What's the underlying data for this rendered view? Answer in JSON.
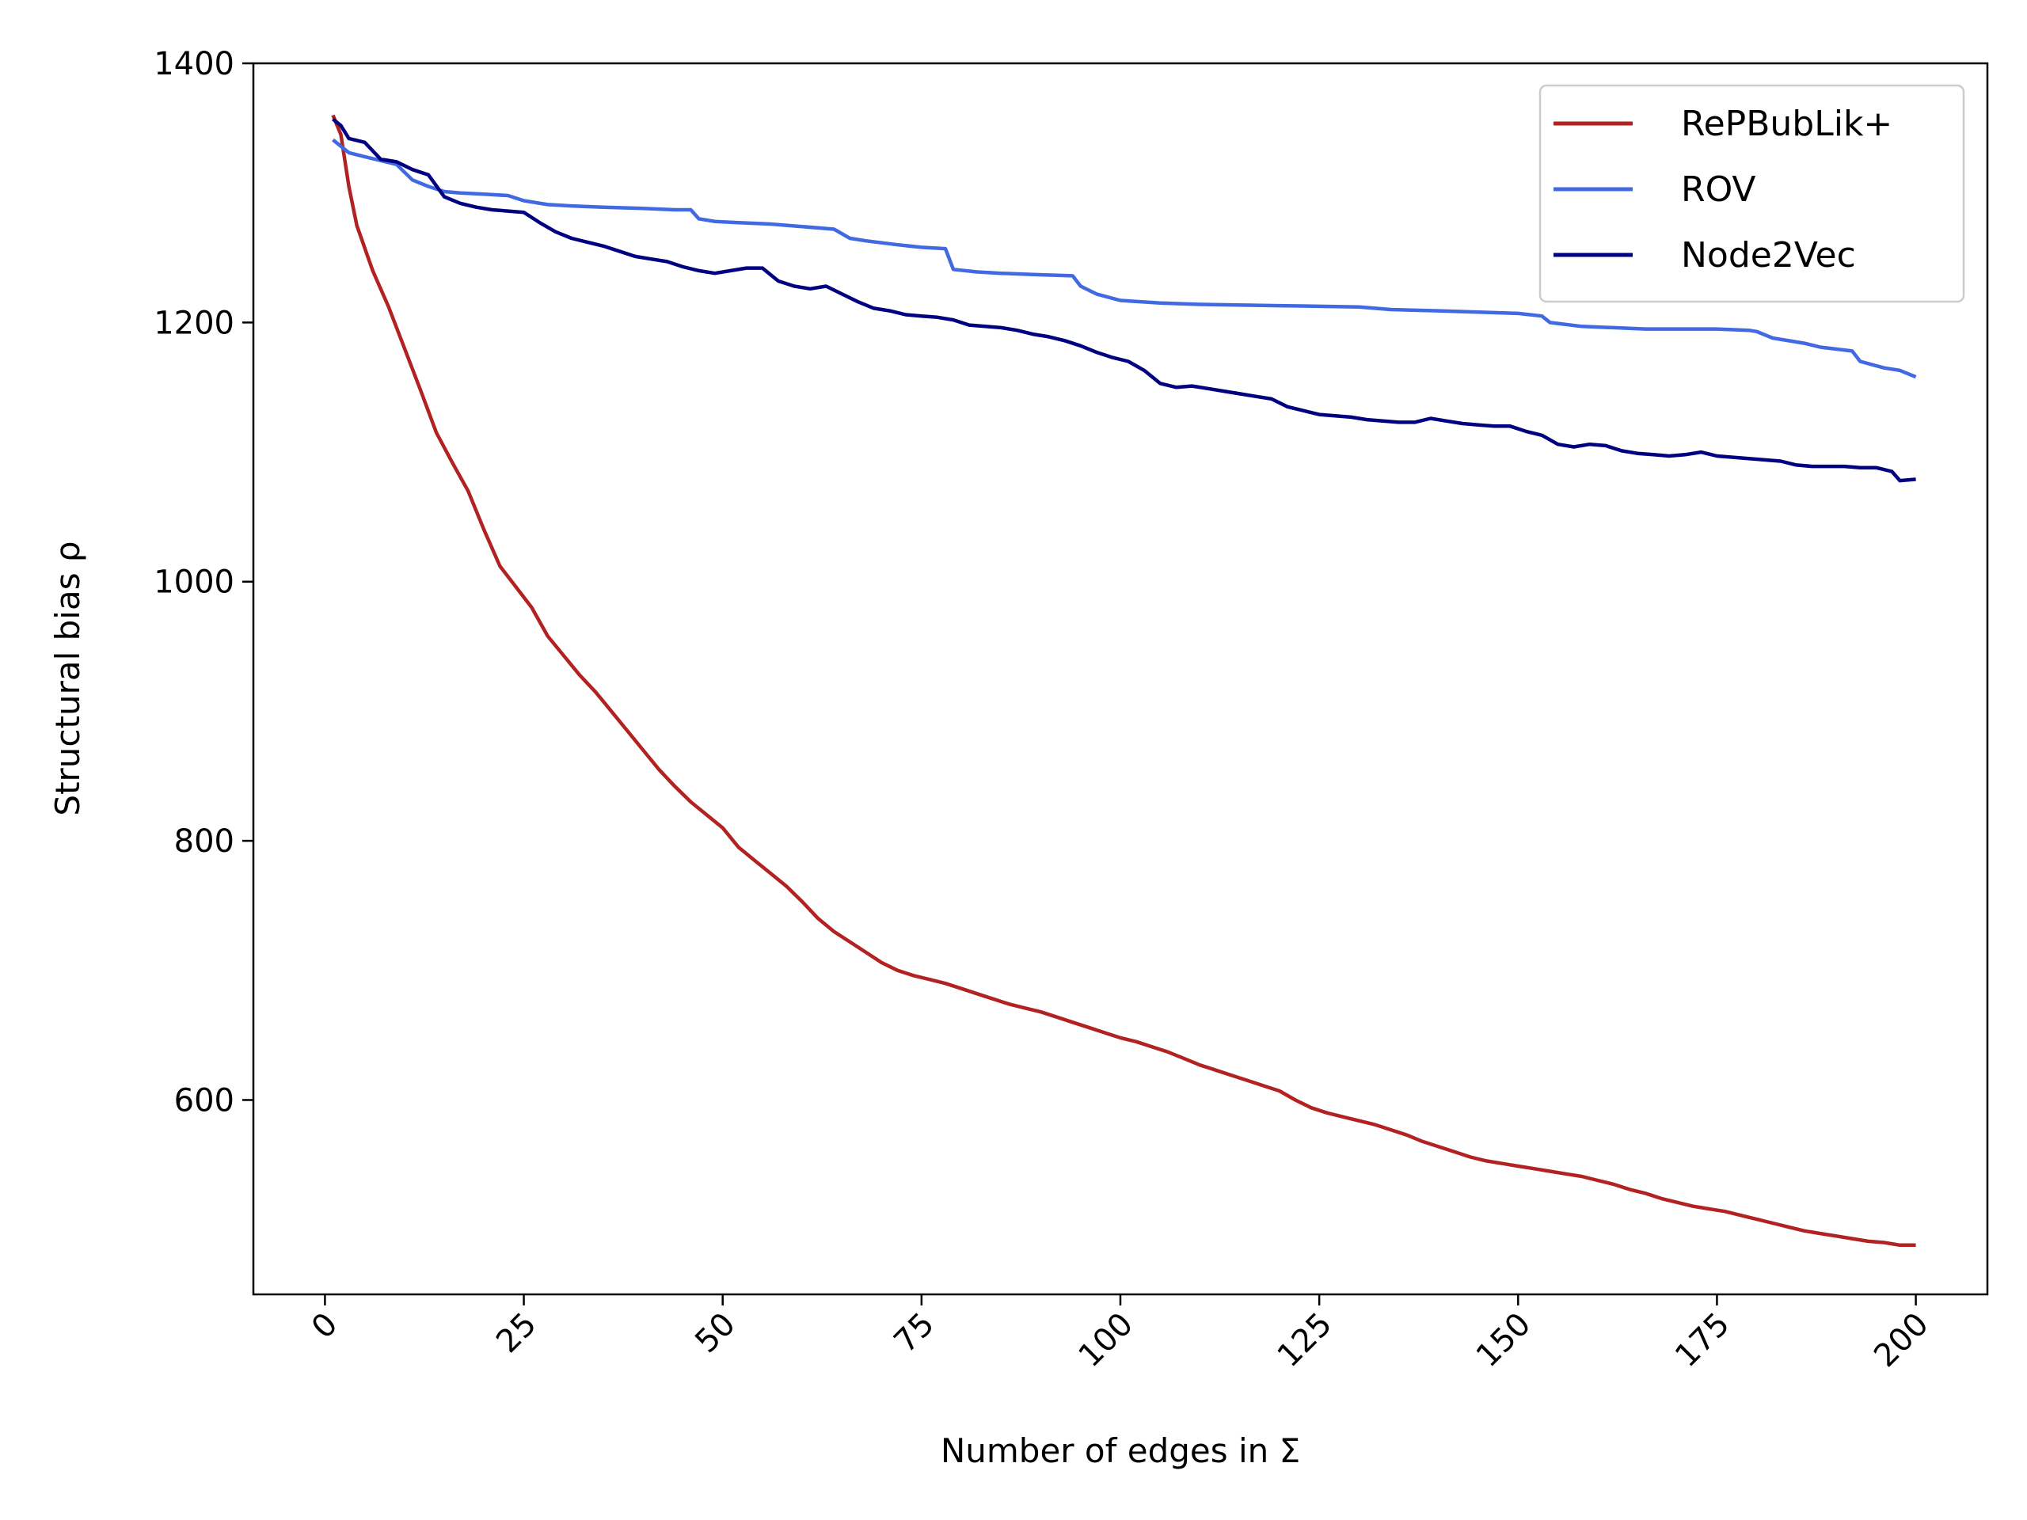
{
  "chart_data": {
    "type": "line",
    "title": "",
    "xlabel": "Number of edges in Σ",
    "ylabel": "Structural bias ρ",
    "xlim": [
      -9,
      209
    ],
    "ylim": [
      450,
      1400
    ],
    "x_ticks": [
      0,
      25,
      50,
      75,
      100,
      125,
      150,
      175,
      200
    ],
    "y_ticks": [
      600,
      800,
      1000,
      1200,
      1400
    ],
    "grid": false,
    "legend_position": "top-right",
    "series": [
      {
        "name": "RePBubLik+",
        "color": "#b22222",
        "points": [
          [
            1,
            1360
          ],
          [
            2,
            1345
          ],
          [
            3,
            1305
          ],
          [
            4,
            1275
          ],
          [
            6,
            1240
          ],
          [
            8,
            1212
          ],
          [
            10,
            1180
          ],
          [
            12,
            1148
          ],
          [
            14,
            1115
          ],
          [
            16,
            1092
          ],
          [
            18,
            1070
          ],
          [
            20,
            1040
          ],
          [
            22,
            1012
          ],
          [
            24,
            996
          ],
          [
            26,
            980
          ],
          [
            28,
            958
          ],
          [
            30,
            943
          ],
          [
            32,
            928
          ],
          [
            34,
            915
          ],
          [
            36,
            900
          ],
          [
            38,
            885
          ],
          [
            40,
            870
          ],
          [
            42,
            855
          ],
          [
            44,
            842
          ],
          [
            46,
            830
          ],
          [
            48,
            820
          ],
          [
            50,
            810
          ],
          [
            52,
            795
          ],
          [
            54,
            785
          ],
          [
            56,
            775
          ],
          [
            58,
            765
          ],
          [
            60,
            753
          ],
          [
            62,
            740
          ],
          [
            64,
            730
          ],
          [
            66,
            722
          ],
          [
            68,
            714
          ],
          [
            70,
            706
          ],
          [
            72,
            700
          ],
          [
            74,
            696
          ],
          [
            76,
            693
          ],
          [
            78,
            690
          ],
          [
            80,
            686
          ],
          [
            82,
            682
          ],
          [
            84,
            678
          ],
          [
            86,
            674
          ],
          [
            88,
            671
          ],
          [
            90,
            668
          ],
          [
            92,
            664
          ],
          [
            94,
            660
          ],
          [
            96,
            656
          ],
          [
            98,
            652
          ],
          [
            100,
            648
          ],
          [
            102,
            645
          ],
          [
            104,
            641
          ],
          [
            106,
            637
          ],
          [
            108,
            632
          ],
          [
            110,
            627
          ],
          [
            112,
            623
          ],
          [
            114,
            619
          ],
          [
            116,
            615
          ],
          [
            118,
            611
          ],
          [
            120,
            607
          ],
          [
            122,
            600
          ],
          [
            124,
            594
          ],
          [
            126,
            590
          ],
          [
            128,
            587
          ],
          [
            130,
            584
          ],
          [
            132,
            581
          ],
          [
            134,
            577
          ],
          [
            136,
            573
          ],
          [
            138,
            568
          ],
          [
            140,
            564
          ],
          [
            142,
            560
          ],
          [
            144,
            556
          ],
          [
            146,
            553
          ],
          [
            148,
            551
          ],
          [
            150,
            549
          ],
          [
            152,
            547
          ],
          [
            154,
            545
          ],
          [
            156,
            543
          ],
          [
            158,
            541
          ],
          [
            160,
            538
          ],
          [
            162,
            535
          ],
          [
            164,
            531
          ],
          [
            166,
            528
          ],
          [
            168,
            524
          ],
          [
            170,
            521
          ],
          [
            172,
            518
          ],
          [
            174,
            516
          ],
          [
            176,
            514
          ],
          [
            178,
            511
          ],
          [
            180,
            508
          ],
          [
            182,
            505
          ],
          [
            184,
            502
          ],
          [
            186,
            499
          ],
          [
            188,
            497
          ],
          [
            190,
            495
          ],
          [
            192,
            493
          ],
          [
            194,
            491
          ],
          [
            196,
            490
          ],
          [
            198,
            488
          ],
          [
            200,
            488
          ]
        ]
      },
      {
        "name": "ROV",
        "color": "#4169e1",
        "points": [
          [
            1,
            1341
          ],
          [
            3,
            1331
          ],
          [
            5,
            1328
          ],
          [
            7,
            1325
          ],
          [
            9,
            1322
          ],
          [
            11,
            1310
          ],
          [
            13,
            1305
          ],
          [
            15,
            1301
          ],
          [
            17,
            1300
          ],
          [
            20,
            1299
          ],
          [
            23,
            1298
          ],
          [
            25,
            1294
          ],
          [
            28,
            1291
          ],
          [
            31,
            1290
          ],
          [
            35,
            1289
          ],
          [
            40,
            1288
          ],
          [
            44,
            1287
          ],
          [
            46,
            1287
          ],
          [
            47,
            1280
          ],
          [
            49,
            1278
          ],
          [
            52,
            1277
          ],
          [
            56,
            1276
          ],
          [
            60,
            1274
          ],
          [
            64,
            1272
          ],
          [
            66,
            1265
          ],
          [
            68,
            1263
          ],
          [
            72,
            1260
          ],
          [
            75,
            1258
          ],
          [
            78,
            1257
          ],
          [
            79,
            1241
          ],
          [
            82,
            1239
          ],
          [
            85,
            1238
          ],
          [
            89,
            1237
          ],
          [
            94,
            1236
          ],
          [
            95,
            1228
          ],
          [
            97,
            1222
          ],
          [
            100,
            1217
          ],
          [
            105,
            1215
          ],
          [
            110,
            1214
          ],
          [
            120,
            1213
          ],
          [
            130,
            1212
          ],
          [
            134,
            1210
          ],
          [
            140,
            1209
          ],
          [
            145,
            1208
          ],
          [
            150,
            1207
          ],
          [
            153,
            1205
          ],
          [
            154,
            1200
          ],
          [
            158,
            1197
          ],
          [
            162,
            1196
          ],
          [
            166,
            1195
          ],
          [
            170,
            1195
          ],
          [
            175,
            1195
          ],
          [
            179,
            1194
          ],
          [
            180,
            1193
          ],
          [
            182,
            1188
          ],
          [
            186,
            1184
          ],
          [
            188,
            1181
          ],
          [
            192,
            1178
          ],
          [
            193,
            1170
          ],
          [
            196,
            1165
          ],
          [
            198,
            1163
          ],
          [
            200,
            1158
          ]
        ]
      },
      {
        "name": "Node2Vec",
        "color": "#000080",
        "points": [
          [
            1,
            1357
          ],
          [
            2,
            1352
          ],
          [
            3,
            1342
          ],
          [
            5,
            1339
          ],
          [
            7,
            1326
          ],
          [
            9,
            1324
          ],
          [
            11,
            1318
          ],
          [
            13,
            1314
          ],
          [
            15,
            1297
          ],
          [
            17,
            1292
          ],
          [
            19,
            1289
          ],
          [
            21,
            1287
          ],
          [
            23,
            1286
          ],
          [
            25,
            1285
          ],
          [
            27,
            1277
          ],
          [
            29,
            1270
          ],
          [
            31,
            1265
          ],
          [
            33,
            1262
          ],
          [
            35,
            1259
          ],
          [
            37,
            1255
          ],
          [
            39,
            1251
          ],
          [
            41,
            1249
          ],
          [
            43,
            1247
          ],
          [
            45,
            1243
          ],
          [
            47,
            1240
          ],
          [
            49,
            1238
          ],
          [
            51,
            1240
          ],
          [
            53,
            1242
          ],
          [
            55,
            1242
          ],
          [
            57,
            1232
          ],
          [
            59,
            1228
          ],
          [
            61,
            1226
          ],
          [
            63,
            1228
          ],
          [
            65,
            1222
          ],
          [
            67,
            1216
          ],
          [
            69,
            1211
          ],
          [
            71,
            1209
          ],
          [
            73,
            1206
          ],
          [
            75,
            1205
          ],
          [
            77,
            1204
          ],
          [
            79,
            1202
          ],
          [
            81,
            1198
          ],
          [
            83,
            1197
          ],
          [
            85,
            1196
          ],
          [
            87,
            1194
          ],
          [
            89,
            1191
          ],
          [
            91,
            1189
          ],
          [
            93,
            1186
          ],
          [
            95,
            1182
          ],
          [
            97,
            1177
          ],
          [
            99,
            1173
          ],
          [
            101,
            1170
          ],
          [
            103,
            1163
          ],
          [
            105,
            1153
          ],
          [
            107,
            1150
          ],
          [
            109,
            1151
          ],
          [
            111,
            1149
          ],
          [
            113,
            1147
          ],
          [
            115,
            1145
          ],
          [
            117,
            1143
          ],
          [
            119,
            1141
          ],
          [
            121,
            1135
          ],
          [
            123,
            1132
          ],
          [
            125,
            1129
          ],
          [
            127,
            1128
          ],
          [
            129,
            1127
          ],
          [
            131,
            1125
          ],
          [
            133,
            1124
          ],
          [
            135,
            1123
          ],
          [
            137,
            1123
          ],
          [
            139,
            1126
          ],
          [
            141,
            1124
          ],
          [
            143,
            1122
          ],
          [
            145,
            1121
          ],
          [
            147,
            1120
          ],
          [
            149,
            1120
          ],
          [
            151,
            1116
          ],
          [
            153,
            1113
          ],
          [
            155,
            1106
          ],
          [
            157,
            1104
          ],
          [
            159,
            1106
          ],
          [
            161,
            1105
          ],
          [
            163,
            1101
          ],
          [
            165,
            1099
          ],
          [
            167,
            1098
          ],
          [
            169,
            1097
          ],
          [
            171,
            1098
          ],
          [
            173,
            1100
          ],
          [
            175,
            1097
          ],
          [
            177,
            1096
          ],
          [
            179,
            1095
          ],
          [
            181,
            1094
          ],
          [
            183,
            1093
          ],
          [
            185,
            1090
          ],
          [
            187,
            1089
          ],
          [
            189,
            1089
          ],
          [
            191,
            1089
          ],
          [
            193,
            1088
          ],
          [
            195,
            1088
          ],
          [
            197,
            1085
          ],
          [
            198,
            1078
          ],
          [
            200,
            1079
          ]
        ]
      }
    ]
  }
}
